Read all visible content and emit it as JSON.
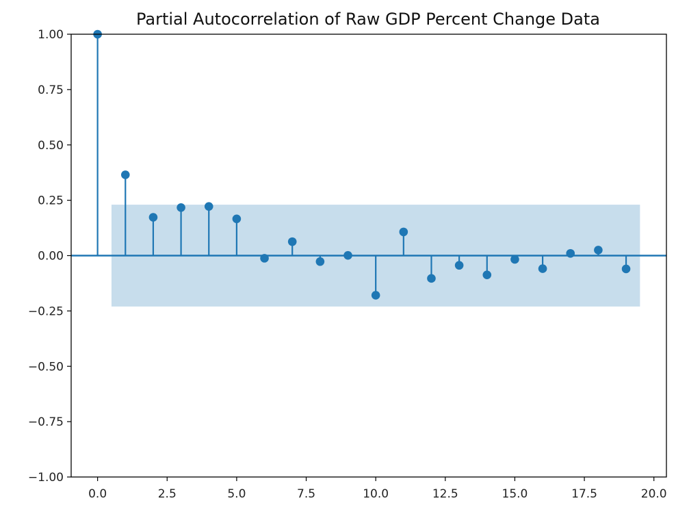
{
  "chart_data": {
    "type": "stem",
    "title": "Partial Autocorrelation of Raw GDP Percent Change Data",
    "xlabel": "",
    "ylabel": "",
    "xlim": [
      -0.95,
      20.45
    ],
    "ylim": [
      -1.0,
      1.0
    ],
    "x_ticks": [
      0.0,
      2.5,
      5.0,
      7.5,
      10.0,
      12.5,
      15.0,
      17.5,
      20.0
    ],
    "x_tick_labels": [
      "0.0",
      "2.5",
      "5.0",
      "7.5",
      "10.0",
      "12.5",
      "15.0",
      "17.5",
      "20.0"
    ],
    "y_ticks": [
      1.0,
      0.75,
      0.5,
      0.25,
      0.0,
      -0.25,
      -0.5,
      -0.75,
      -1.0
    ],
    "y_tick_labels": [
      "1.00",
      "0.75",
      "0.50",
      "0.25",
      "0.00",
      "−0.25",
      "−0.50",
      "−0.75",
      "−1.00"
    ],
    "lags": [
      0,
      1,
      2,
      3,
      4,
      5,
      6,
      7,
      8,
      9,
      10,
      11,
      12,
      13,
      14,
      15,
      16,
      17,
      18,
      19
    ],
    "values": [
      1.0,
      0.365,
      0.173,
      0.217,
      0.222,
      0.166,
      -0.012,
      0.063,
      -0.027,
      0.001,
      -0.179,
      0.107,
      -0.103,
      -0.044,
      -0.087,
      -0.017,
      -0.059,
      0.01,
      0.025,
      -0.06
    ],
    "confidence_interval": {
      "lower": -0.23,
      "upper": 0.23,
      "x_start": 0.5,
      "x_end": 19.5
    },
    "grid": false,
    "legend": "none",
    "colors": {
      "stem": "#1f77b4",
      "band": "#1f77b4",
      "band_opacity": 0.25,
      "axis": "#000000"
    }
  }
}
